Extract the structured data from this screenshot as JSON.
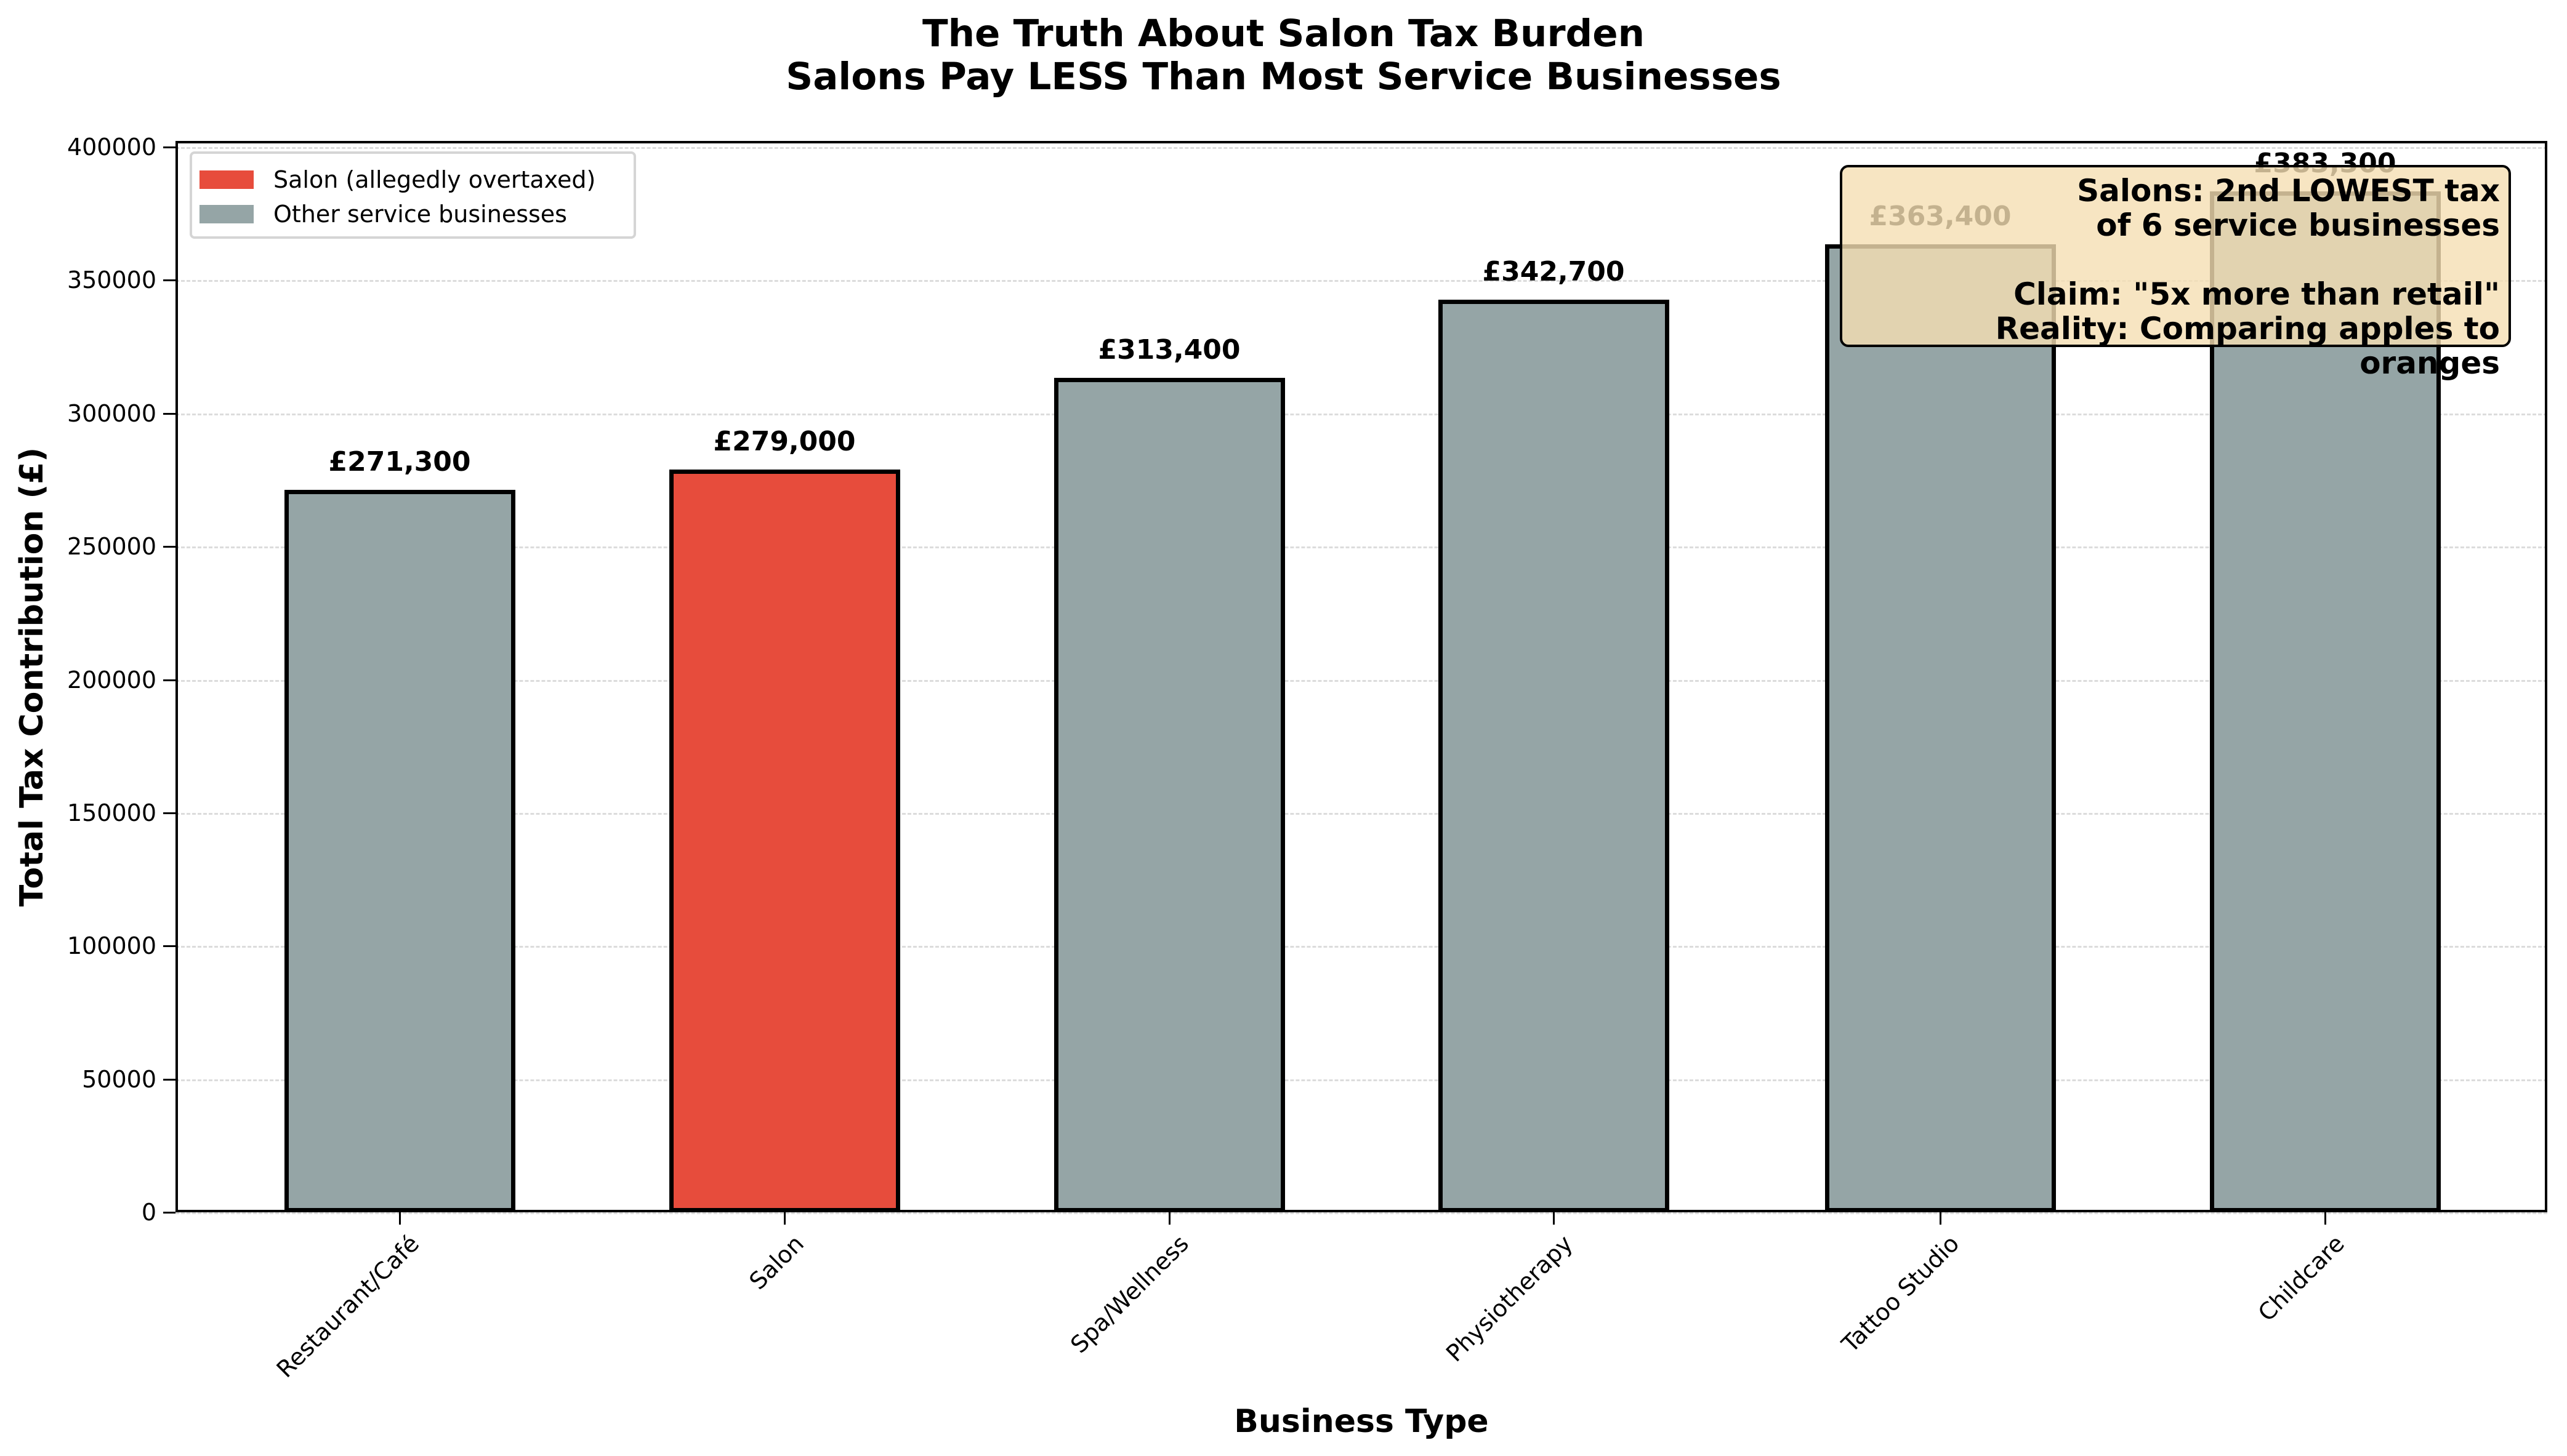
{
  "chart_data": {
    "type": "bar",
    "title": "The Truth About Salon Tax Burden",
    "subtitle": "Salons Pay LESS Than Most Service Businesses",
    "xlabel": "Business Type",
    "ylabel": "Total Tax Contribution (£)",
    "categories": [
      "Restaurant/Café",
      "Salon",
      "Spa/Wellness",
      "Physiotherapy",
      "Tattoo Studio",
      "Childcare"
    ],
    "values": [
      271300,
      279000,
      313400,
      342700,
      363400,
      383300
    ],
    "value_labels": [
      "£271,300",
      "£279,000",
      "£313,400",
      "£342,700",
      "£363,400",
      "£383,300"
    ],
    "bar_colors": [
      "#95a5a6",
      "#e74c3c",
      "#95a5a6",
      "#95a5a6",
      "#95a5a6",
      "#95a5a6"
    ],
    "ylim": [
      0,
      400000
    ],
    "yticks": [
      "0",
      "50000",
      "100000",
      "150000",
      "200000",
      "250000",
      "300000",
      "350000",
      "400000"
    ],
    "grid": "y dashed",
    "legend": {
      "position": "upper left",
      "entries": [
        {
          "label": "Salon (allegedly overtaxed)",
          "color": "#e74c3c"
        },
        {
          "label": "Other service businesses",
          "color": "#95a5a6"
        }
      ]
    },
    "annotation": {
      "lines": [
        "Salons: 2nd LOWEST tax",
        "of 6 service businesses",
        "",
        "Claim: \"5x more than retail\"",
        "Reality: Comparing apples to oranges"
      ],
      "background": "#f5deb3"
    }
  }
}
